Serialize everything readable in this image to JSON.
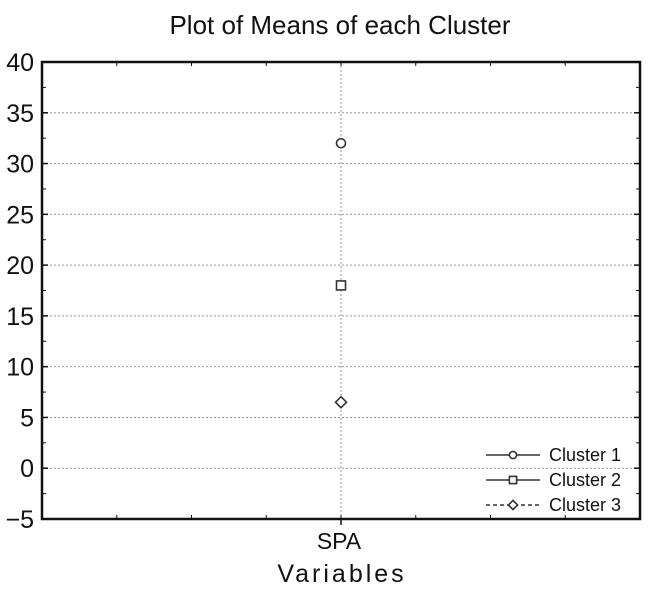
{
  "chart_data": {
    "type": "scatter",
    "title": "Plot of Means of each Cluster",
    "xlabel": "Variables",
    "ylabel": "",
    "categories": [
      "SPA"
    ],
    "ylim": [
      -5,
      40
    ],
    "yticks": [
      "40",
      "35",
      "30",
      "25",
      "20",
      "15",
      "10",
      "5",
      "0",
      "−5"
    ],
    "ytick_values": [
      40,
      35,
      30,
      25,
      20,
      15,
      10,
      5,
      0,
      -5
    ],
    "grid": true,
    "legend_position": "bottom-right",
    "series": [
      {
        "name": "Cluster 1",
        "marker": "circle",
        "line": "solid",
        "values": [
          32
        ]
      },
      {
        "name": "Cluster 2",
        "marker": "square",
        "line": "solid",
        "values": [
          18
        ]
      },
      {
        "name": "Cluster 3",
        "marker": "diamond",
        "line": "dashed",
        "values": [
          6.5
        ]
      }
    ]
  }
}
